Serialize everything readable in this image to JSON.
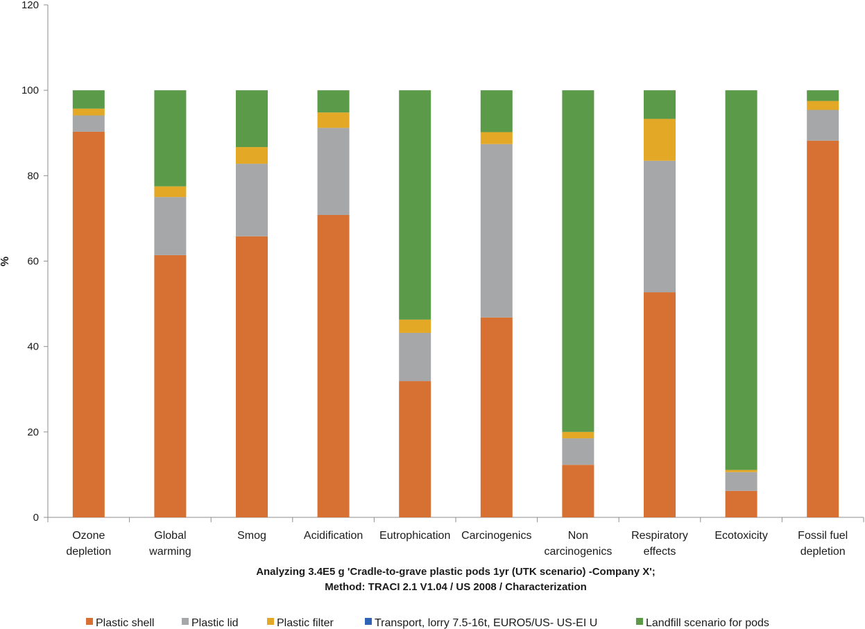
{
  "chart_data": {
    "type": "bar",
    "stacked": true,
    "title_lines": [
      "Analyzing 3.4E5 g 'Cradle-to-grave plastic pods 1yr (UTK scenario) -Company X';",
      "Method: TRACI 2.1 V1.04 / US 2008 / Characterization"
    ],
    "ylabel": "%",
    "xlabel": "",
    "ylim": [
      0,
      120
    ],
    "yticks": [
      0,
      20,
      40,
      60,
      80,
      100,
      120
    ],
    "grid": false,
    "legend_position": "bottom",
    "categories": [
      [
        "Ozone",
        "depletion"
      ],
      [
        "Global",
        "warming"
      ],
      [
        "Smog"
      ],
      [
        "Acidification"
      ],
      [
        "Eutrophication"
      ],
      [
        "Carcinogenics"
      ],
      [
        "Non",
        "carcinogenics"
      ],
      [
        "Respiratory",
        "effects"
      ],
      [
        "Ecotoxicity"
      ],
      [
        "Fossil fuel",
        "depletion"
      ]
    ],
    "series": [
      {
        "name": "Plastic shell",
        "color": "#d77133",
        "values": [
          90.3,
          61.4,
          65.8,
          70.8,
          31.9,
          46.8,
          12.3,
          52.7,
          6.2,
          88.2
        ]
      },
      {
        "name": "Plastic lid",
        "color": "#a6a7a9",
        "values": [
          3.8,
          13.6,
          17.0,
          20.4,
          11.3,
          40.6,
          6.2,
          30.8,
          4.4,
          7.2
        ]
      },
      {
        "name": "Plastic filter",
        "color": "#e2a826",
        "values": [
          1.6,
          2.5,
          3.9,
          3.6,
          3.1,
          2.8,
          1.5,
          9.8,
          0.5,
          2.1
        ]
      },
      {
        "name": "Transport, lorry 7.5-16t, EURO5/US- US-EI U",
        "color": "#2e63b6",
        "values": [
          0,
          0,
          0,
          0,
          0,
          0,
          0,
          0,
          0,
          0
        ]
      },
      {
        "name": "Landfill scenario for pods",
        "color": "#5a9a48",
        "values": [
          4.3,
          22.5,
          13.3,
          5.2,
          53.7,
          9.8,
          80.0,
          6.7,
          88.9,
          2.5
        ]
      }
    ]
  }
}
